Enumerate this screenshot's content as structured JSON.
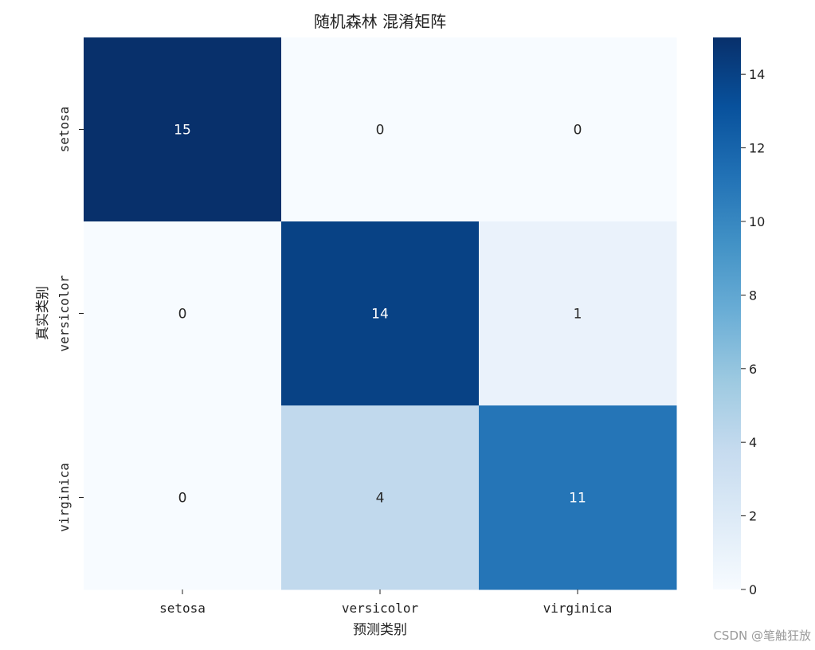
{
  "chart_data": {
    "type": "heatmap",
    "title": "随机森林 混淆矩阵",
    "xlabel": "预测类别",
    "ylabel": "真实类别",
    "x_categories": [
      "setosa",
      "versicolor",
      "virginica"
    ],
    "y_categories": [
      "setosa",
      "versicolor",
      "virginica"
    ],
    "values": [
      [
        15,
        0,
        0
      ],
      [
        0,
        14,
        1
      ],
      [
        0,
        4,
        11
      ]
    ],
    "colormap": "Blues",
    "vmin": 0,
    "vmax": 15,
    "colorbar_ticks": [
      0,
      2,
      4,
      6,
      8,
      10,
      12,
      14
    ],
    "annotations": true
  },
  "watermark": "CSDN @笔触狂放",
  "colors": {
    "light": "#f7fbff",
    "dark": "#08306b",
    "text_dark": "#262626",
    "text_light": "#ffffff"
  }
}
